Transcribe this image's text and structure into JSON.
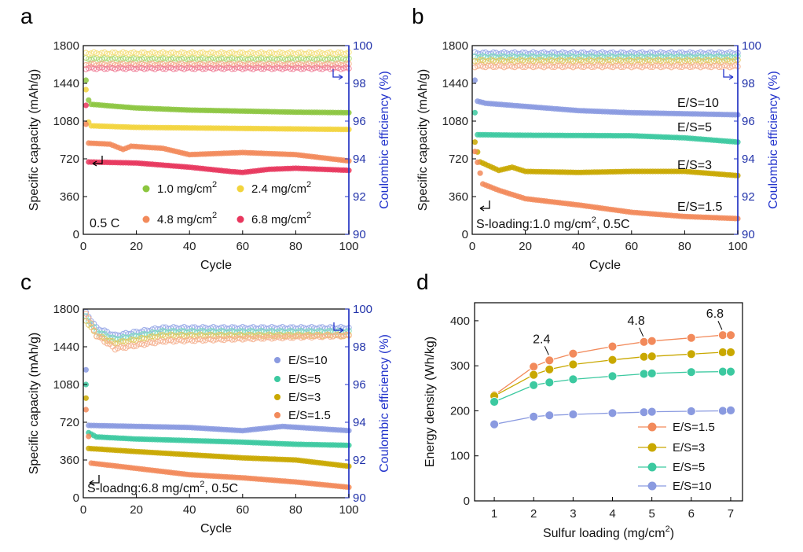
{
  "chart_data": [
    {
      "panel": "a",
      "type": "scatter",
      "xlabel": "Cycle",
      "ylabel": "Specific capacity (mAh/g)",
      "y2label": "Coulombic efficiency (%)",
      "xlim": [
        0,
        100
      ],
      "ylim": [
        0,
        1800
      ],
      "y2lim": [
        90,
        100
      ],
      "xticks": [
        "0",
        "20",
        "40",
        "60",
        "80",
        "100"
      ],
      "yticks": [
        "0",
        "360",
        "720",
        "1080",
        "1440",
        "1800"
      ],
      "y2ticks": [
        "90",
        "92",
        "94",
        "96",
        "98",
        "100"
      ],
      "annotation": "0.5 C",
      "series": [
        {
          "name": "1.0 mg/cm2",
          "label": "1.0 mg/cm",
          "sup": "2",
          "color": "#8cc63f",
          "ce_color": "#a8d870",
          "cap_key": [
            [
              1,
              1470
            ],
            [
              2,
              1280
            ],
            [
              3,
              1240
            ],
            [
              10,
              1225
            ],
            [
              20,
              1205
            ],
            [
              40,
              1185
            ],
            [
              60,
              1175
            ],
            [
              80,
              1165
            ],
            [
              100,
              1160
            ]
          ],
          "ce_key": [
            [
              1,
              99.3
            ],
            [
              100,
              99.3
            ]
          ]
        },
        {
          "name": "2.4 mg/cm2",
          "label": "2.4 mg/cm",
          "sup": "2",
          "color": "#f2d43d",
          "ce_color": "#f5e080",
          "cap_key": [
            [
              1,
              1380
            ],
            [
              2,
              1070
            ],
            [
              3,
              1035
            ],
            [
              20,
              1020
            ],
            [
              40,
              1015
            ],
            [
              60,
              1010
            ],
            [
              80,
              1005
            ],
            [
              100,
              1000
            ]
          ],
          "ce_key": [
            [
              1,
              99.6
            ],
            [
              100,
              99.6
            ]
          ]
        },
        {
          "name": "4.8 mg/cm2",
          "label": "4.8 mg/cm",
          "sup": "2",
          "color": "#f28a5b",
          "ce_color": "#f5b08f",
          "cap_key": [
            [
              1,
              1050
            ],
            [
              2,
              870
            ],
            [
              10,
              860
            ],
            [
              15,
              810
            ],
            [
              18,
              840
            ],
            [
              30,
              820
            ],
            [
              40,
              760
            ],
            [
              60,
              780
            ],
            [
              80,
              760
            ],
            [
              100,
              700
            ]
          ],
          "ce_key": [
            [
              1,
              99.0
            ],
            [
              100,
              99.0
            ]
          ]
        },
        {
          "name": "6.8 mg/cm2",
          "label": "6.8 mg/cm",
          "sup": "2",
          "color": "#e8365d",
          "ce_color": "#f08098",
          "cap_key": [
            [
              1,
              1230
            ],
            [
              2,
              690
            ],
            [
              20,
              680
            ],
            [
              40,
              640
            ],
            [
              55,
              600
            ],
            [
              60,
              590
            ],
            [
              70,
              620
            ],
            [
              80,
              630
            ],
            [
              100,
              610
            ]
          ],
          "ce_key": [
            [
              1,
              98.8
            ],
            [
              100,
              98.8
            ]
          ]
        }
      ]
    },
    {
      "panel": "b",
      "type": "scatter",
      "xlabel": "Cycle",
      "ylabel": "Specific capacity (mAh/g)",
      "y2label": "Coulombic efficiency (%)",
      "xlim": [
        0,
        100
      ],
      "ylim": [
        0,
        1800
      ],
      "y2lim": [
        90,
        100
      ],
      "xticks": [
        "0",
        "20",
        "40",
        "60",
        "80",
        "100"
      ],
      "yticks": [
        "0",
        "360",
        "720",
        "1080",
        "1440",
        "1800"
      ],
      "y2ticks": [
        "90",
        "92",
        "94",
        "96",
        "98",
        "100"
      ],
      "annotation": "S-loading:1.0 mg/cm",
      "annotation_sup": "2",
      "annotation_tail": ", 0.5C",
      "series": [
        {
          "name": "E/S=10",
          "color": "#8a9ae0",
          "ce_color": "#99aae8",
          "cap_key": [
            [
              1,
              1470
            ],
            [
              2,
              1270
            ],
            [
              5,
              1250
            ],
            [
              20,
              1220
            ],
            [
              40,
              1180
            ],
            [
              60,
              1160
            ],
            [
              80,
              1150
            ],
            [
              100,
              1140
            ]
          ],
          "ce_key": [
            [
              1,
              99.6
            ],
            [
              100,
              99.6
            ]
          ]
        },
        {
          "name": "E/S=5",
          "color": "#3cc9a0",
          "ce_color": "#80dcc0",
          "cap_key": [
            [
              1,
              1160
            ],
            [
              2,
              950
            ],
            [
              20,
              945
            ],
            [
              60,
              940
            ],
            [
              80,
              920
            ],
            [
              100,
              880
            ]
          ],
          "ce_key": [
            [
              1,
              99.4
            ],
            [
              100,
              99.4
            ]
          ]
        },
        {
          "name": "E/S=3",
          "color": "#c9a800",
          "ce_color": "#e0c860",
          "cap_key": [
            [
              1,
              880
            ],
            [
              3,
              690
            ],
            [
              10,
              610
            ],
            [
              15,
              640
            ],
            [
              20,
              600
            ],
            [
              40,
              590
            ],
            [
              60,
              600
            ],
            [
              80,
              600
            ],
            [
              100,
              560
            ]
          ],
          "ce_key": [
            [
              1,
              99.2
            ],
            [
              100,
              99.2
            ]
          ]
        },
        {
          "name": "E/S=1.5",
          "color": "#f28a5b",
          "ce_color": "#f5b08f",
          "cap_key": [
            [
              1,
              790
            ],
            [
              4,
              480
            ],
            [
              10,
              420
            ],
            [
              20,
              340
            ],
            [
              40,
              280
            ],
            [
              60,
              210
            ],
            [
              80,
              170
            ],
            [
              100,
              150
            ]
          ],
          "ce_key": [
            [
              1,
              98.9
            ],
            [
              100,
              98.9
            ]
          ]
        }
      ],
      "labels": [
        "E/S=10",
        "E/S=5",
        "E/S=3",
        "E/S=1.5"
      ]
    },
    {
      "panel": "c",
      "type": "scatter",
      "xlabel": "Cycle",
      "ylabel": "Specific capacity (mAh/g)",
      "y2label": "Coulombic efficiency (%)",
      "xlim": [
        0,
        100
      ],
      "ylim": [
        0,
        1800
      ],
      "y2lim": [
        90,
        100
      ],
      "xticks": [
        "0",
        "20",
        "40",
        "60",
        "80",
        "100"
      ],
      "yticks": [
        "0",
        "360",
        "720",
        "1080",
        "1440",
        "1800"
      ],
      "y2ticks": [
        "90",
        "92",
        "94",
        "96",
        "98",
        "100"
      ],
      "annotation": "S-loadng:6.8 mg/cm",
      "annotation_sup": "2",
      "annotation_tail": ", 0.5C",
      "series": [
        {
          "name": "E/S=10",
          "color": "#8a9ae0",
          "ce_color": "#99aae8",
          "cap_key": [
            [
              1,
              1220
            ],
            [
              2,
              690
            ],
            [
              40,
              670
            ],
            [
              60,
              640
            ],
            [
              75,
              680
            ],
            [
              100,
              640
            ]
          ],
          "ce_key": [
            [
              1,
              99.8
            ],
            [
              5,
              99.0
            ],
            [
              12,
              98.6
            ],
            [
              30,
              99.0
            ],
            [
              100,
              99.0
            ]
          ]
        },
        {
          "name": "E/S=5",
          "color": "#3cc9a0",
          "ce_color": "#80dcc0",
          "cap_key": [
            [
              1,
              1080
            ],
            [
              2,
              620
            ],
            [
              5,
              580
            ],
            [
              20,
              560
            ],
            [
              60,
              530
            ],
            [
              80,
              510
            ],
            [
              100,
              500
            ]
          ],
          "ce_key": [
            [
              1,
              99.6
            ],
            [
              5,
              98.8
            ],
            [
              12,
              98.4
            ],
            [
              30,
              98.8
            ],
            [
              100,
              98.8
            ]
          ]
        },
        {
          "name": "E/S=3",
          "color": "#c9a800",
          "ce_color": "#e0c860",
          "cap_key": [
            [
              1,
              950
            ],
            [
              2,
              470
            ],
            [
              20,
              440
            ],
            [
              60,
              380
            ],
            [
              80,
              360
            ],
            [
              100,
              300
            ]
          ],
          "ce_key": [
            [
              1,
              99.4
            ],
            [
              5,
              98.6
            ],
            [
              12,
              98.2
            ],
            [
              30,
              98.6
            ],
            [
              100,
              98.6
            ]
          ]
        },
        {
          "name": "E/S=1.5",
          "color": "#f28a5b",
          "ce_color": "#f5b08f",
          "cap_key": [
            [
              1,
              840
            ],
            [
              3,
              330
            ],
            [
              20,
              280
            ],
            [
              40,
              220
            ],
            [
              60,
              190
            ],
            [
              80,
              150
            ],
            [
              100,
              100
            ]
          ],
          "ce_key": [
            [
              1,
              99.8
            ],
            [
              5,
              98.6
            ],
            [
              12,
              97.9
            ],
            [
              30,
              98.3
            ],
            [
              100,
              98.6
            ]
          ]
        }
      ]
    },
    {
      "panel": "d",
      "type": "line",
      "xlabel": "Sulfur loading (mg/cm",
      "xlabel_sup": "2",
      "xlabel_tail": ")",
      "ylabel": "Energy density (Wh/kg)",
      "xlim": [
        0.5,
        7.3
      ],
      "ylim": [
        0,
        440
      ],
      "xticks": [
        "1",
        "2",
        "3",
        "4",
        "5",
        "6",
        "7"
      ],
      "yticks": [
        "0",
        "100",
        "200",
        "300",
        "400"
      ],
      "x": [
        1,
        2,
        2.4,
        3,
        4,
        4.8,
        5,
        6,
        6.8,
        7
      ],
      "series": [
        {
          "name": "E/S=1.5",
          "color": "#f28a5b",
          "values": [
            235,
            298,
            312,
            327,
            343,
            353,
            355,
            362,
            368,
            368
          ]
        },
        {
          "name": "E/S=3",
          "color": "#c9a800",
          "values": [
            233,
            280,
            292,
            303,
            313,
            320,
            321,
            326,
            330,
            330
          ]
        },
        {
          "name": "E/S=5",
          "color": "#3cc9a0",
          "values": [
            220,
            257,
            263,
            270,
            277,
            282,
            283,
            286,
            287,
            287
          ]
        },
        {
          "name": "E/S=10",
          "color": "#8a9ae0",
          "values": [
            170,
            187,
            190,
            192,
            195,
            197,
            198,
            199,
            200,
            201
          ]
        }
      ],
      "point_labels": [
        {
          "text": "2.4",
          "x": 2.4,
          "y": 312
        },
        {
          "text": "4.8",
          "x": 4.8,
          "y": 353
        },
        {
          "text": "6.8",
          "x": 6.8,
          "y": 368
        }
      ]
    }
  ]
}
